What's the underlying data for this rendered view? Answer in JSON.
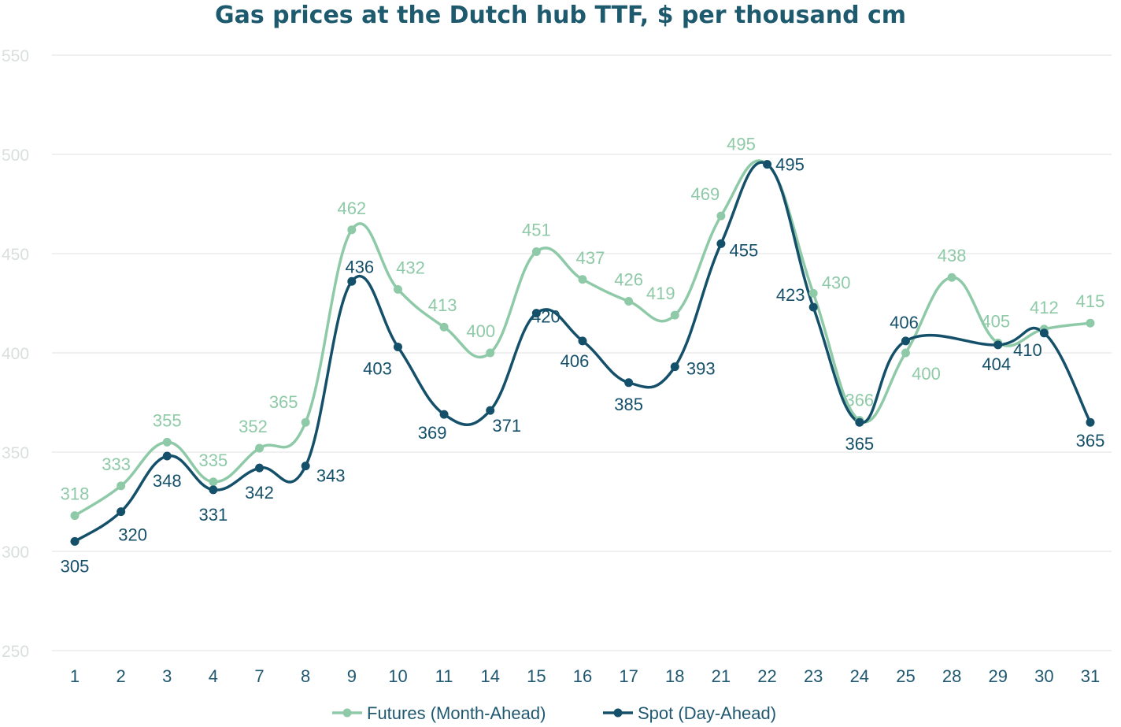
{
  "chart_data": {
    "type": "line",
    "title": "Gas prices at the Dutch hub TTF, $ per thousand cm",
    "categories": [
      "1",
      "2",
      "3",
      "4",
      "7",
      "8",
      "9",
      "10",
      "11",
      "14",
      "15",
      "16",
      "17",
      "18",
      "21",
      "22",
      "23",
      "24",
      "25",
      "28",
      "29",
      "30",
      "31"
    ],
    "y_ticks": [
      "550",
      "500",
      "450",
      "400",
      "350",
      "300",
      "250"
    ],
    "ylim": [
      250,
      550
    ],
    "grid": true,
    "legend_position": "bottom",
    "series": [
      {
        "name": "Futures (Month-Ahead)",
        "color": "#8fcaa8",
        "values": [
          318,
          333,
          355,
          335,
          352,
          365,
          462,
          432,
          413,
          400,
          451,
          437,
          426,
          419,
          469,
          495,
          430,
          366,
          400,
          438,
          405,
          412,
          415
        ],
        "labels": [
          "318",
          "333",
          "355",
          "335",
          "352",
          "365",
          "462",
          "432",
          "413",
          "400",
          "451",
          "437",
          "426",
          "419",
          "469",
          "495",
          "430",
          "366",
          "400",
          "438",
          "405",
          "412",
          "415"
        ]
      },
      {
        "name": "Spot (Day-Ahead)",
        "color": "#15506a",
        "values": [
          305,
          320,
          348,
          331,
          342,
          343,
          436,
          403,
          369,
          371,
          420,
          406,
          385,
          393,
          455,
          495,
          423,
          365,
          406,
          null,
          404,
          410,
          365
        ],
        "labels": [
          "305",
          "320",
          "348",
          "331",
          "342",
          "343",
          "436",
          "403",
          "369",
          "371",
          "420",
          "406",
          "385",
          "393",
          "455",
          "495",
          "423",
          "365",
          "406",
          "",
          "404",
          "410",
          "365"
        ]
      }
    ]
  }
}
